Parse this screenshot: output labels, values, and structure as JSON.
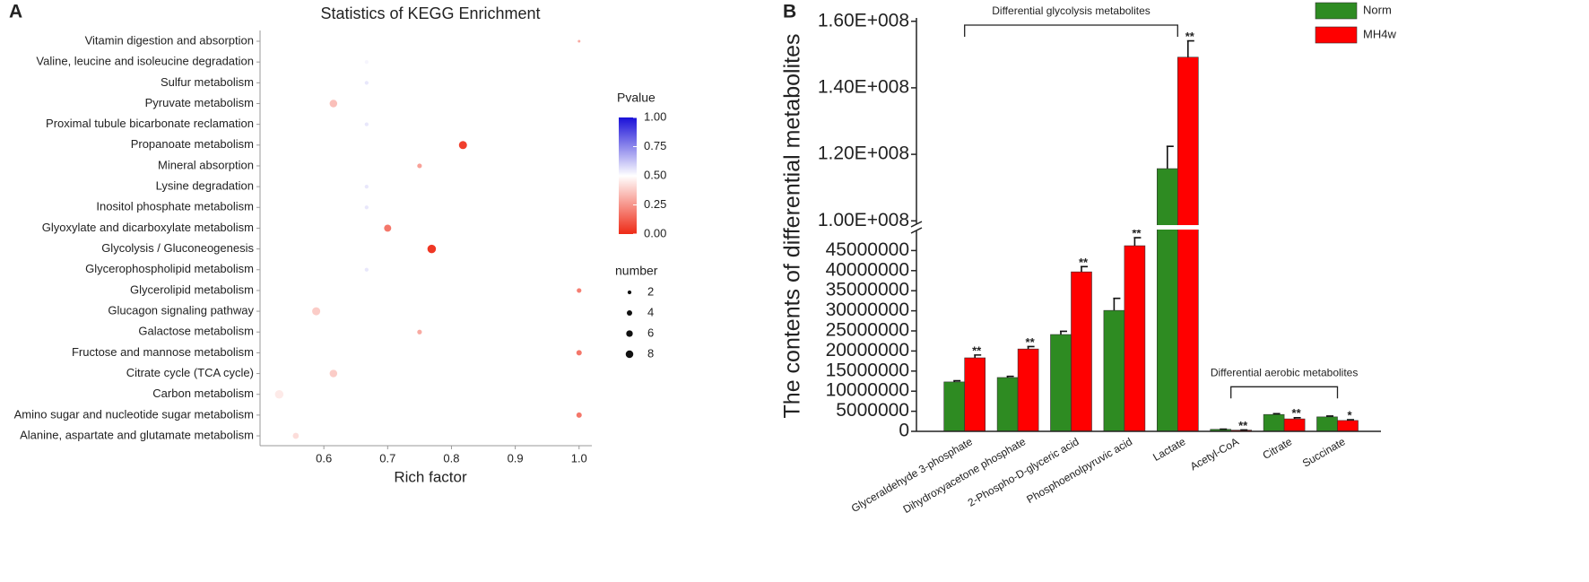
{
  "chart_data": [
    {
      "type": "scatter",
      "panel": "A",
      "title": "Statistics of KEGG Enrichment",
      "xlabel": "Rich factor",
      "categories": [
        "Vitamin digestion and absorption",
        "Valine, leucine and isoleucine degradation",
        "Sulfur metabolism",
        "Pyruvate metabolism",
        "Proximal tubule bicarbonate reclamation",
        "Propanoate metabolism",
        "Mineral absorption",
        "Lysine degradation",
        "Inositol phosphate metabolism",
        "Glyoxylate and dicarboxylate metabolism",
        "Glycolysis / Gluconeogenesis",
        "Glycerophospholipid metabolism",
        "Glycerolipid metabolism",
        "Glucagon signaling pathway",
        "Galactose metabolism",
        "Fructose and mannose metabolism",
        "Citrate cycle (TCA cycle)",
        "Carbon metabolism",
        "Amino sugar and nucleotide sugar metabolism",
        "Alanine, aspartate and glutamate metabolism"
      ],
      "values": [
        1.0,
        0.667,
        0.667,
        0.615,
        0.667,
        0.818,
        0.75,
        0.667,
        0.667,
        0.7,
        0.769,
        0.667,
        1.0,
        0.588,
        0.75,
        1.0,
        0.615,
        0.53,
        1.0,
        0.556
      ],
      "sizes": [
        1,
        2,
        2,
        8,
        2,
        9,
        3,
        2,
        2,
        7,
        10,
        2,
        3,
        9,
        3,
        4,
        8,
        10,
        4,
        5
      ],
      "pvalues": [
        0.3,
        0.52,
        0.55,
        0.35,
        0.55,
        0.05,
        0.28,
        0.55,
        0.55,
        0.18,
        0.03,
        0.55,
        0.2,
        0.38,
        0.3,
        0.18,
        0.38,
        0.45,
        0.18,
        0.42
      ],
      "xlim": [
        0.5,
        1.02
      ],
      "xticks": [
        0.6,
        0.7,
        0.8,
        0.9,
        {
          "value": 1,
          "label": "1.0"
        }
      ],
      "color_legend": {
        "title": "Pvalue",
        "low": "#ee2a16",
        "mid": "#ffffff",
        "high": "#1a10d8",
        "ticks": [
          {
            "value": 0,
            "label": "0.00"
          },
          0.25,
          {
            "value": 0.5,
            "label": "0.50"
          },
          0.75,
          {
            "value": 1,
            "label": "1.00"
          }
        ]
      },
      "size_legend": {
        "title": "number",
        "values": [
          2,
          4,
          6,
          8
        ]
      }
    },
    {
      "type": "bar",
      "panel": "B",
      "ylabel": "The contents of differential metabolites",
      "categories": [
        "Glyceraldehyde 3-phosphate",
        "Dihydroxyacetone phosphate",
        "2-Phospho-D-glyceric acid",
        "Phosphoenolpyruvic acid",
        "Lactate",
        "Acetyl-CoA",
        "Citrate",
        "Succinate"
      ],
      "series": [
        {
          "name": "Norm",
          "color": "#2e8b22",
          "values": [
            12300000,
            13400000,
            24100000,
            30100000,
            115700000,
            500000,
            4200000,
            3600000
          ],
          "errors": [
            300000,
            300000,
            800000,
            3000000,
            6700000,
            50000,
            200000,
            200000
          ]
        },
        {
          "name": "MH4w",
          "color": "#ff0000",
          "values": [
            18300000,
            20500000,
            39700000,
            46200000,
            149200000,
            300000,
            3100000,
            2700000
          ],
          "errors": [
            700000,
            600000,
            1300000,
            2000000,
            4900000,
            50000,
            300000,
            200000
          ]
        }
      ],
      "significance": [
        "**",
        "**",
        "**",
        "**",
        "**",
        "**",
        "**",
        "*"
      ],
      "groups": [
        {
          "label": "Differential glycolysis metabolites",
          "members": [
            "Glyceraldehyde 3-phosphate",
            "Lactate"
          ]
        },
        {
          "label": "Differential aerobic metabolites",
          "members": [
            "Acetyl-CoA",
            "Succinate"
          ]
        }
      ],
      "ylim": [
        0,
        161000000
      ],
      "y_break": [
        50000000,
        99000000
      ],
      "yticks": [
        0,
        5000000,
        10000000,
        15000000,
        20000000,
        25000000,
        30000000,
        35000000,
        40000000,
        45000000,
        {
          "value": 100000000,
          "label": "1.00E+008"
        },
        {
          "value": 120000000,
          "label": "1.20E+008"
        },
        {
          "value": 140000000,
          "label": "1.40E+008"
        },
        {
          "value": 160000000,
          "label": "1.60E+008"
        }
      ],
      "legend": "upper right"
    }
  ]
}
